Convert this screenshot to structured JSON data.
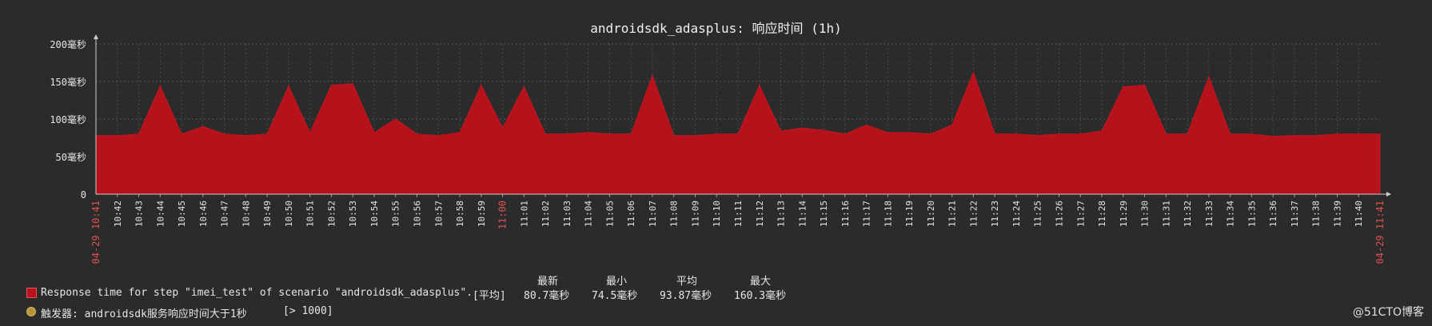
{
  "title": "androidsdk_adasplus: 响应时间 (1h)",
  "chart_data": {
    "type": "area",
    "title": "androidsdk_adasplus: 响应时间 (1h)",
    "ylim": [
      0,
      200
    ],
    "y_ticks": [
      0,
      50,
      100,
      150,
      200
    ],
    "y_tick_labels": [
      "0",
      "50毫秒",
      "100毫秒",
      "150毫秒",
      "200毫秒"
    ],
    "x_start_label": "04-29 10:41",
    "x_end_label": "04-29 11:41",
    "x_tick_labels": [
      "10:42",
      "10:43",
      "10:44",
      "10:45",
      "10:46",
      "10:47",
      "10:48",
      "10:49",
      "10:50",
      "10:51",
      "10:52",
      "10:53",
      "10:54",
      "10:55",
      "10:56",
      "10:57",
      "10:58",
      "10:59",
      "11:00",
      "11:01",
      "11:02",
      "11:03",
      "11:04",
      "11:05",
      "11:06",
      "11:07",
      "11:08",
      "11:09",
      "11:10",
      "11:11",
      "11:12",
      "11:13",
      "11:14",
      "11:15",
      "11:16",
      "11:17",
      "11:18",
      "11:19",
      "11:20",
      "11:21",
      "11:22",
      "11:23",
      "11:24",
      "11:25",
      "11:26",
      "11:27",
      "11:28",
      "11:29",
      "11:30",
      "11:31",
      "11:32",
      "11:33",
      "11:34",
      "11:35",
      "11:36",
      "11:37",
      "11:38",
      "11:39",
      "11:40"
    ],
    "highlight_tick": "11:00",
    "grid": true,
    "series": [
      {
        "name": "Response time for step \"imei_test\" of scenario \"androidsdk_adasplus\".",
        "color": "#b5121b",
        "x_minutes": [
          0,
          1,
          2,
          3,
          4,
          5,
          6,
          7,
          8,
          9,
          10,
          11,
          12,
          13,
          14,
          15,
          16,
          17,
          18,
          19,
          20,
          21,
          22,
          23,
          24,
          25,
          26,
          27,
          28,
          29,
          30,
          31,
          32,
          33,
          34,
          35,
          36,
          37,
          38,
          39,
          40,
          41,
          42,
          43,
          44,
          45,
          46,
          47,
          48,
          49,
          50,
          51,
          52,
          53,
          54,
          55,
          56,
          57,
          58,
          59,
          60
        ],
        "values": [
          78,
          78,
          80,
          144,
          80,
          90,
          80,
          78,
          80,
          144,
          82,
          145,
          147,
          82,
          100,
          80,
          78,
          82,
          145,
          88,
          143,
          80,
          80,
          82,
          80,
          80,
          158,
          78,
          78,
          80,
          80,
          145,
          84,
          88,
          85,
          80,
          92,
          82,
          82,
          80,
          92,
          162,
          80,
          80,
          78,
          80,
          80,
          84,
          143,
          145,
          80,
          80,
          156,
          80,
          80,
          77,
          78,
          78,
          80,
          80,
          80
        ]
      }
    ],
    "legend": {
      "series_label": "Response time for step \"imei_test\" of scenario \"androidsdk_adasplus\".",
      "agg": "[平均]",
      "headers": [
        "最新",
        "最小",
        "平均",
        "最大"
      ],
      "values": [
        "80.7毫秒",
        "74.5毫秒",
        "93.87毫秒",
        "160.3毫秒"
      ],
      "trigger_label": "触发器: androidsdk服务响应时间大于1秒",
      "trigger_cond": "[> 1000]",
      "trigger_color": "#b8963e"
    }
  },
  "watermark": "@51CTO博客"
}
